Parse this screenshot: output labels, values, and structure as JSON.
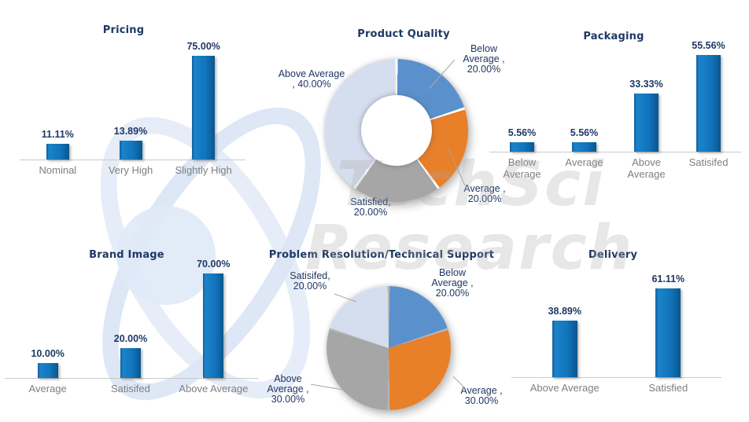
{
  "watermark": {
    "brand_line1": "TechSci",
    "brand_line2": "Research"
  },
  "colors": {
    "bar_fill": "#1174BC",
    "bar_fill_light": "#1C83C9",
    "bar_fill_edge": "#0F5F9F",
    "bar_fill_dark": "#0A568E",
    "title_text": "#1F3864",
    "value_label_text": "#1F3864",
    "category_label_text": "#7F7F7F",
    "axis_line": "#C9C9C9",
    "leader_line": "#A6A6A6",
    "pie_blue": "#5A91CC",
    "pie_orange": "#E87F29",
    "pie_gray": "#A6A6A6",
    "pie_light_blue": "#D5DEEF",
    "watermark_light_blue": "#DCE6F4"
  },
  "chart_data": [
    {
      "type": "bar",
      "title": "Pricing",
      "categories": [
        "Nominal",
        "Very High",
        "Slightly High"
      ],
      "values": [
        11.11,
        13.89,
        75.0
      ],
      "value_labels": [
        "11.11%",
        "13.89%",
        "75.00%"
      ],
      "value_suffix": "%",
      "ylim": [
        0,
        80
      ],
      "grid": "off",
      "legend": "none"
    },
    {
      "type": "pie",
      "subtype": "donut",
      "title": "Product Quality",
      "slices": [
        {
          "label": "Below Average",
          "value": 20.0,
          "display": "Below\nAverage ,\n20.00%",
          "color": "#5A91CC"
        },
        {
          "label": "Average",
          "value": 20.0,
          "display": "Average ,\n20.00%",
          "color": "#E87F29"
        },
        {
          "label": "Satisfied",
          "value": 20.0,
          "display": "Satisfied,\n20.00%",
          "color": "#A6A6A6"
        },
        {
          "label": "Above Average",
          "value": 40.0,
          "display": "Above Average\n, 40.00%",
          "color": "#D5DEEF"
        }
      ],
      "legend": "none"
    },
    {
      "type": "bar",
      "title": "Packaging",
      "categories": [
        "Below Average",
        "Average",
        "Above Average",
        "Satisifed"
      ],
      "values": [
        5.56,
        5.56,
        33.33,
        55.56
      ],
      "value_labels": [
        "5.56%",
        "5.56%",
        "33.33%",
        "55.56%"
      ],
      "value_suffix": "%",
      "ylim": [
        0,
        60
      ],
      "grid": "off",
      "legend": "none"
    },
    {
      "type": "bar",
      "title": "Brand Image",
      "categories": [
        "Average",
        "Satisifed",
        "Above Average"
      ],
      "values": [
        10.0,
        20.0,
        70.0
      ],
      "value_labels": [
        "10.00%",
        "20.00%",
        "70.00%"
      ],
      "value_suffix": "%",
      "ylim": [
        0,
        75
      ],
      "grid": "off",
      "legend": "none"
    },
    {
      "type": "pie",
      "subtype": "pie",
      "title": "Problem Resolution/Technical Support",
      "slices": [
        {
          "label": "Below Average",
          "value": 20.0,
          "display": "Below\nAverage ,\n20.00%",
          "color": "#5A91CC"
        },
        {
          "label": "Average",
          "value": 30.0,
          "display": "Average ,\n30.00%",
          "color": "#E87F29"
        },
        {
          "label": "Above Average",
          "value": 30.0,
          "display": "Above\nAverage ,\n30.00%",
          "color": "#A6A6A6"
        },
        {
          "label": "Satisifed",
          "value": 20.0,
          "display": "Satisifed,\n20.00%",
          "color": "#D5DEEF"
        }
      ],
      "legend": "none"
    },
    {
      "type": "bar",
      "title": "Delivery",
      "categories": [
        "Above Average",
        "Satisfied"
      ],
      "values": [
        38.89,
        61.11
      ],
      "value_labels": [
        "38.89%",
        "61.11%"
      ],
      "value_suffix": "%",
      "ylim": [
        0,
        65
      ],
      "grid": "off",
      "legend": "none"
    }
  ]
}
